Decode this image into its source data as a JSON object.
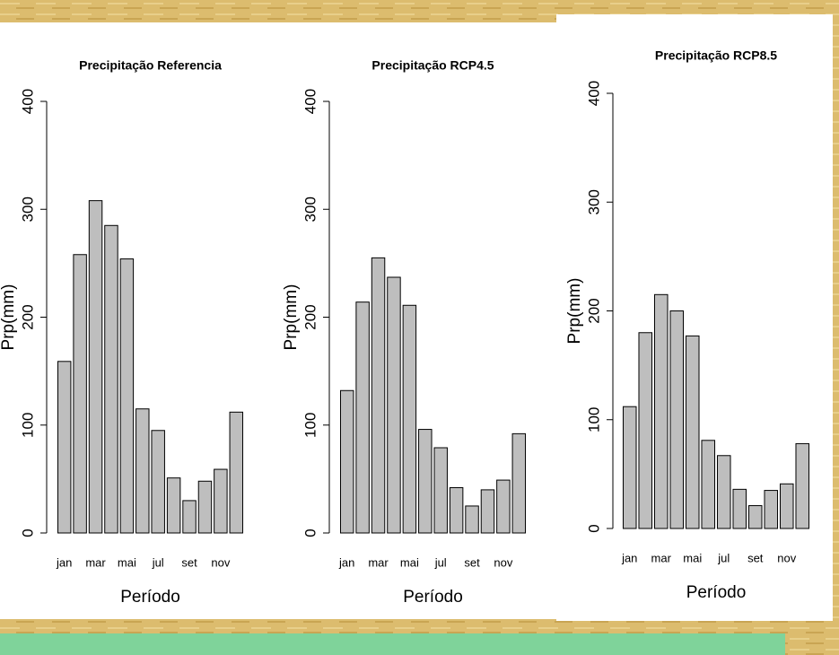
{
  "chart_data": [
    {
      "type": "bar",
      "title": "Precipitação Referencia",
      "x_label": "Período",
      "y_label": "Prp(mm)",
      "categories": [
        "jan",
        null,
        "mar",
        null,
        "mai",
        null,
        "jul",
        null,
        "set",
        null,
        "nov",
        null
      ],
      "values": [
        159,
        258,
        308,
        285,
        254,
        115,
        95,
        51,
        30,
        48,
        59,
        112
      ],
      "color": "#bebebe",
      "ylim": [
        0,
        400
      ],
      "yticks": [
        0,
        100,
        200,
        300,
        400
      ]
    },
    {
      "type": "bar",
      "title": "Precipitação RCP4.5",
      "x_label": "Período",
      "y_label": "Prp(mm)",
      "categories": [
        "jan",
        null,
        "mar",
        null,
        "mai",
        null,
        "jul",
        null,
        "set",
        null,
        "nov",
        null
      ],
      "values": [
        132,
        214,
        255,
        237,
        211,
        96,
        79,
        42,
        25,
        40,
        49,
        92
      ],
      "color": "#bebebe",
      "ylim": [
        0,
        400
      ],
      "yticks": [
        0,
        100,
        200,
        300,
        400
      ]
    },
    {
      "type": "bar",
      "title": "Precipitação RCP8.5",
      "x_label": "Período",
      "y_label": "Prp(mm)",
      "categories": [
        "jan",
        null,
        "mar",
        null,
        "mai",
        null,
        "jul",
        null,
        "set",
        null,
        "nov",
        null
      ],
      "values": [
        112,
        180,
        215,
        200,
        177,
        81,
        67,
        36,
        21,
        35,
        41,
        78
      ],
      "color": "#bebebe",
      "ylim": [
        0,
        400
      ],
      "yticks": [
        0,
        100,
        200,
        300,
        400
      ]
    }
  ]
}
